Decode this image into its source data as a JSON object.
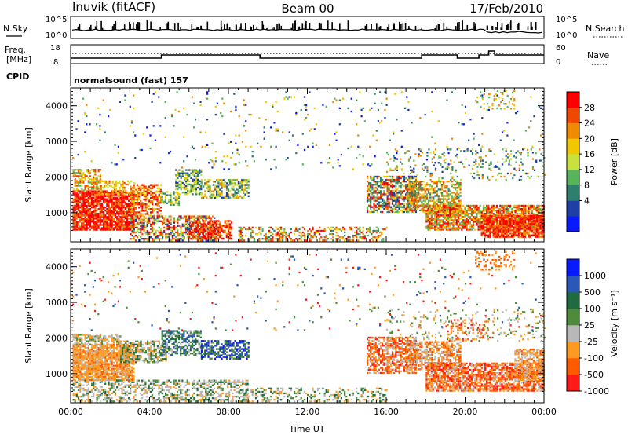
{
  "header": {
    "left_title": "Inuvik (fitACF)",
    "center_title": "Beam 00",
    "right_title": "17/Feb/2010"
  },
  "strip_labels": {
    "nsky": "N.Sky",
    "nsky_ticks": [
      "10^5",
      "10^0"
    ],
    "nsearch": "N.Search",
    "nsearch_ticks": [
      "10^5",
      "10^0"
    ],
    "freq": "Freq.",
    "freq_unit": "[MHz]",
    "freq_ticks": [
      "18",
      "8"
    ],
    "nave": "Nave",
    "nave_ticks": [
      "60",
      "0"
    ],
    "cpid": "CPID",
    "cpid_text": "normalsound (fast) 157"
  },
  "colors": {
    "power": [
      "#0a1aff",
      "#1f3fa8",
      "#2e7f6e",
      "#58b45a",
      "#c8e13c",
      "#f0c800",
      "#f08a00",
      "#f04800",
      "#ff0000"
    ],
    "velocity": [
      "#ff1a1a",
      "#ff5a00",
      "#ff9a20",
      "#b8b8b8",
      "#4e8c3c",
      "#1f6a3f",
      "#2a57b8",
      "#0a1aff"
    ]
  },
  "chart_data": [
    {
      "type": "heatmap",
      "name": "power",
      "xlabel": "",
      "ylabel": "Slant Range [km]",
      "ylim": [
        180,
        4500
      ],
      "y_ticks": [
        "1000",
        "2000",
        "3000",
        "4000"
      ],
      "x_ticks": [
        "00:00",
        "04:00",
        "08:00",
        "12:00",
        "16:00",
        "20:00",
        "00:00"
      ],
      "colorbar": {
        "label": "Power [dB]",
        "ticks": [
          "28",
          "24",
          "20",
          "16",
          "12",
          "8",
          "4"
        ],
        "range": [
          0,
          30
        ]
      }
    },
    {
      "type": "heatmap",
      "name": "velocity",
      "xlabel": "Time UT",
      "ylabel": "Slant Range [km]",
      "ylim": [
        180,
        4500
      ],
      "y_ticks": [
        "1000",
        "2000",
        "3000",
        "4000"
      ],
      "x_ticks": [
        "00:00",
        "04:00",
        "08:00",
        "12:00",
        "16:00",
        "20:00",
        "00:00"
      ],
      "colorbar": {
        "label": "Velocity [m s⁻¹]",
        "ticks": [
          "1000",
          "500",
          "100",
          "25",
          "-25",
          "-100",
          "-500",
          "-1000"
        ],
        "range": [
          -1000,
          1000
        ]
      }
    }
  ]
}
